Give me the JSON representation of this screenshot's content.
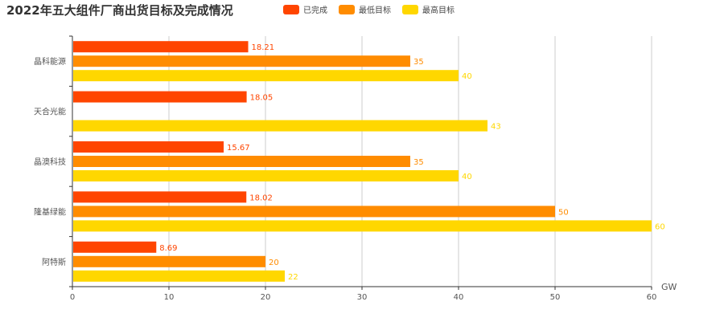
{
  "chart_data": {
    "type": "bar",
    "orientation": "horizontal",
    "title": "2022年五大组件厂商出货目标及完成情况",
    "xlabel": "GW",
    "ylabel": "",
    "xlim": [
      0,
      60
    ],
    "x_ticks": [
      0,
      10,
      20,
      30,
      40,
      50,
      60
    ],
    "grid": true,
    "legend_position": "top",
    "categories": [
      "晶科能源",
      "天合光能",
      "晶澳科技",
      "隆基绿能",
      "阿特斯"
    ],
    "series": [
      {
        "name": "已完成",
        "color": "#ff4500",
        "values": [
          18.21,
          18.05,
          15.67,
          18.02,
          8.69
        ]
      },
      {
        "name": "最低目标",
        "color": "#ff8c00",
        "values": [
          35,
          null,
          35,
          50,
          20
        ]
      },
      {
        "name": "最高目标",
        "color": "#ffd700",
        "values": [
          40,
          43,
          40,
          60,
          22
        ]
      }
    ]
  }
}
